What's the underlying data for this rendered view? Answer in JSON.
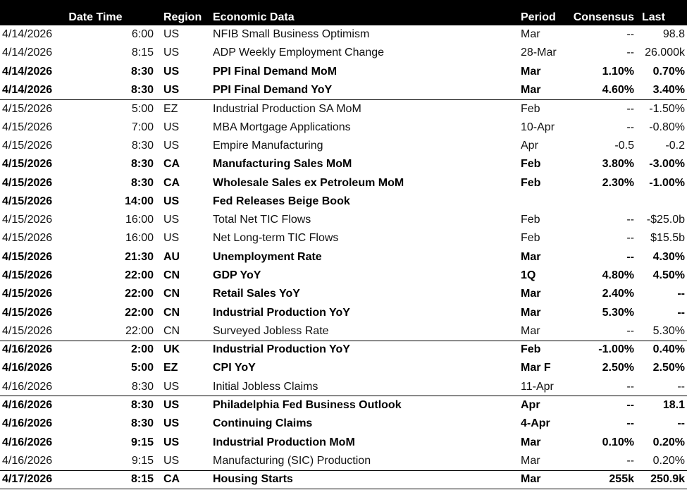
{
  "headers": {
    "date": "Date",
    "time": "Time",
    "region": "Region",
    "economic_data": "Economic Data",
    "period": "Period",
    "consensus": "Consensus",
    "last": "Last"
  },
  "rows": [
    {
      "date": "4/14/2026",
      "time": "6:00",
      "region": "US",
      "event": "NFIB Small Business Optimism",
      "period": "Mar",
      "consensus": "--",
      "last": "98.8",
      "bold": false,
      "border_top": false
    },
    {
      "date": "4/14/2026",
      "time": "8:15",
      "region": "US",
      "event": "ADP Weekly Employment Change",
      "period": "28-Mar",
      "consensus": "--",
      "last": "26.000k",
      "bold": false,
      "border_top": false
    },
    {
      "date": "4/14/2026",
      "time": "8:30",
      "region": "US",
      "event": "PPI Final Demand MoM",
      "period": "Mar",
      "consensus": "1.10%",
      "last": "0.70%",
      "bold": true,
      "border_top": false
    },
    {
      "date": "4/14/2026",
      "time": "8:30",
      "region": "US",
      "event": "PPI Final Demand YoY",
      "period": "Mar",
      "consensus": "4.60%",
      "last": "3.40%",
      "bold": true,
      "border_top": false
    },
    {
      "date": "4/15/2026",
      "time": "5:00",
      "region": "EZ",
      "event": "Industrial Production SA MoM",
      "period": "Feb",
      "consensus": "--",
      "last": "-1.50%",
      "bold": false,
      "border_top": true
    },
    {
      "date": "4/15/2026",
      "time": "7:00",
      "region": "US",
      "event": "MBA Mortgage Applications",
      "period": "10-Apr",
      "consensus": "--",
      "last": "-0.80%",
      "bold": false,
      "border_top": false
    },
    {
      "date": "4/15/2026",
      "time": "8:30",
      "region": "US",
      "event": "Empire Manufacturing",
      "period": "Apr",
      "consensus": "-0.5",
      "last": "-0.2",
      "bold": false,
      "border_top": false
    },
    {
      "date": "4/15/2026",
      "time": "8:30",
      "region": "CA",
      "event": "Manufacturing Sales MoM",
      "period": "Feb",
      "consensus": "3.80%",
      "last": "-3.00%",
      "bold": true,
      "border_top": false
    },
    {
      "date": "4/15/2026",
      "time": "8:30",
      "region": "CA",
      "event": "Wholesale Sales ex Petroleum MoM",
      "period": "Feb",
      "consensus": "2.30%",
      "last": "-1.00%",
      "bold": true,
      "border_top": false
    },
    {
      "date": "4/15/2026",
      "time": "14:00",
      "region": "US",
      "event": "Fed Releases Beige Book",
      "period": "",
      "consensus": "",
      "last": "",
      "bold": true,
      "border_top": false
    },
    {
      "date": "4/15/2026",
      "time": "16:00",
      "region": "US",
      "event": "Total Net TIC Flows",
      "period": "Feb",
      "consensus": "--",
      "last": "-$25.0b",
      "bold": false,
      "border_top": false
    },
    {
      "date": "4/15/2026",
      "time": "16:00",
      "region": "US",
      "event": "Net Long-term TIC Flows",
      "period": "Feb",
      "consensus": "--",
      "last": "$15.5b",
      "bold": false,
      "border_top": false
    },
    {
      "date": "4/15/2026",
      "time": "21:30",
      "region": "AU",
      "event": "Unemployment Rate",
      "period": "Mar",
      "consensus": "--",
      "last": "4.30%",
      "bold": true,
      "border_top": false
    },
    {
      "date": "4/15/2026",
      "time": "22:00",
      "region": "CN",
      "event": "GDP YoY",
      "period": "1Q",
      "consensus": "4.80%",
      "last": "4.50%",
      "bold": true,
      "border_top": false
    },
    {
      "date": "4/15/2026",
      "time": "22:00",
      "region": "CN",
      "event": "Retail Sales YoY",
      "period": "Mar",
      "consensus": "2.40%",
      "last": "--",
      "bold": true,
      "border_top": false
    },
    {
      "date": "4/15/2026",
      "time": "22:00",
      "region": "CN",
      "event": "Industrial Production YoY",
      "period": "Mar",
      "consensus": "5.30%",
      "last": "--",
      "bold": true,
      "border_top": false
    },
    {
      "date": "4/15/2026",
      "time": "22:00",
      "region": "CN",
      "event": "Surveyed Jobless Rate",
      "period": "Mar",
      "consensus": "--",
      "last": "5.30%",
      "bold": false,
      "border_top": false
    },
    {
      "date": "4/16/2026",
      "time": "2:00",
      "region": "UK",
      "event": "Industrial Production YoY",
      "period": "Feb",
      "consensus": "-1.00%",
      "last": "0.40%",
      "bold": true,
      "border_top": true
    },
    {
      "date": "4/16/2026",
      "time": "5:00",
      "region": "EZ",
      "event": "CPI YoY",
      "period": "Mar F",
      "consensus": "2.50%",
      "last": "2.50%",
      "bold": true,
      "border_top": false
    },
    {
      "date": "4/16/2026",
      "time": "8:30",
      "region": "US",
      "event": "Initial Jobless Claims",
      "period": "11-Apr",
      "consensus": "--",
      "last": "--",
      "bold": false,
      "border_top": false
    },
    {
      "date": "4/16/2026",
      "time": "8:30",
      "region": "US",
      "event": "Philadelphia Fed Business Outlook",
      "period": "Apr",
      "consensus": "--",
      "last": "18.1",
      "bold": true,
      "border_top": true
    },
    {
      "date": "4/16/2026",
      "time": "8:30",
      "region": "US",
      "event": "Continuing Claims",
      "period": "4-Apr",
      "consensus": "--",
      "last": "--",
      "bold": true,
      "border_top": false
    },
    {
      "date": "4/16/2026",
      "time": "9:15",
      "region": "US",
      "event": "Industrial Production MoM",
      "period": "Mar",
      "consensus": "0.10%",
      "last": "0.20%",
      "bold": true,
      "border_top": false
    },
    {
      "date": "4/16/2026",
      "time": "9:15",
      "region": "US",
      "event": "Manufacturing (SIC) Production",
      "period": "Mar",
      "consensus": "--",
      "last": "0.20%",
      "bold": false,
      "border_top": false
    },
    {
      "date": "4/17/2026",
      "time": "8:15",
      "region": "CA",
      "event": "Housing Starts",
      "period": "Mar",
      "consensus": "255k",
      "last": "250.9k",
      "bold": true,
      "border_top": true
    }
  ]
}
